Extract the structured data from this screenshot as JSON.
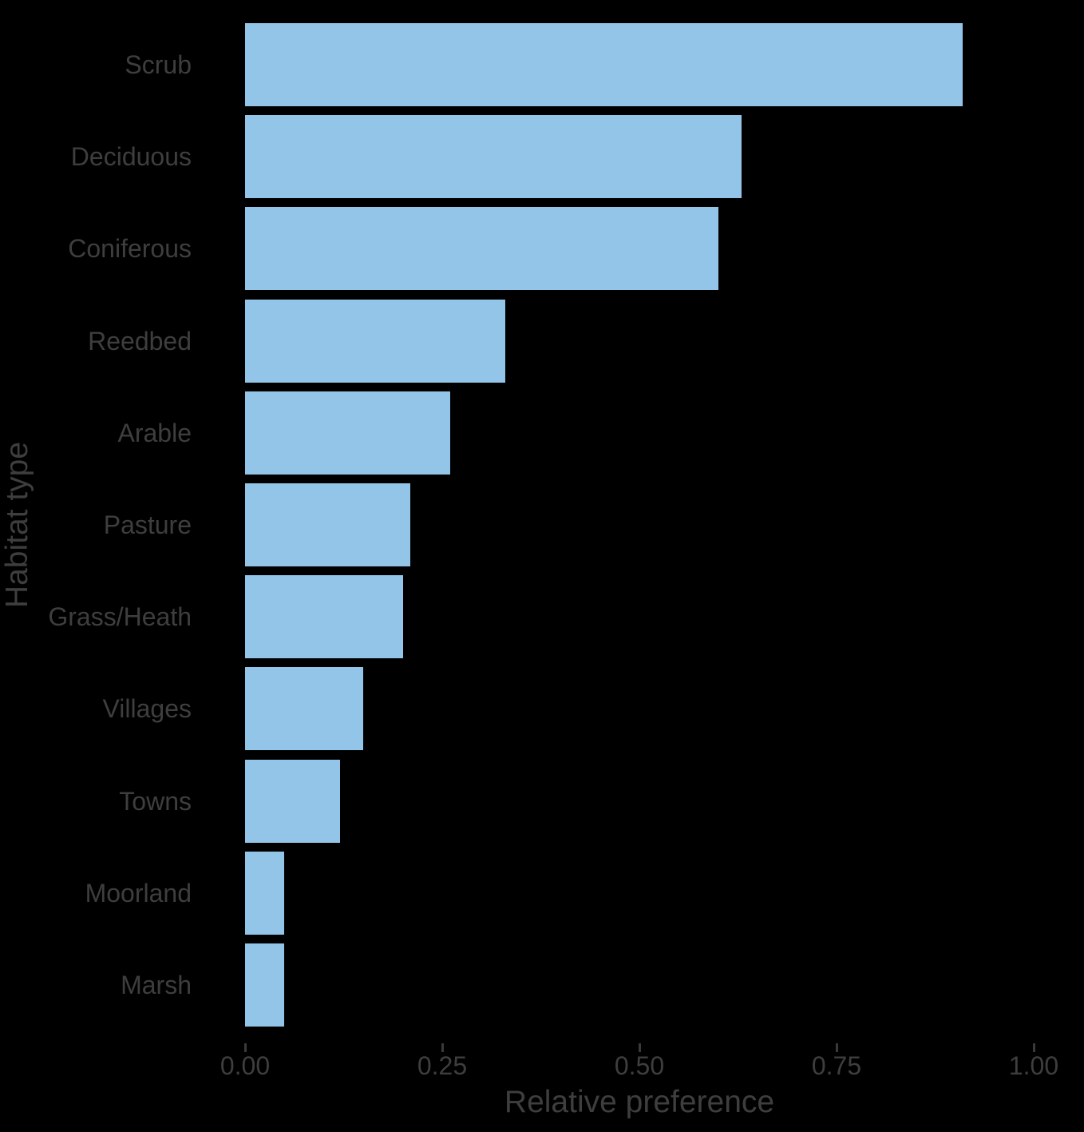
{
  "chart_data": {
    "type": "bar",
    "orientation": "horizontal",
    "title": "",
    "xlabel": "Relative preference",
    "ylabel": "Habitat type",
    "categories": [
      "Scrub",
      "Deciduous",
      "Coniferous",
      "Reedbed",
      "Arable",
      "Pasture",
      "Grass/Heath",
      "Villages",
      "Towns",
      "Moorland",
      "Marsh"
    ],
    "values": [
      0.91,
      0.63,
      0.6,
      0.33,
      0.26,
      0.21,
      0.2,
      0.15,
      0.12,
      0.05,
      0.05
    ],
    "xlim": [
      0,
      1.0
    ],
    "x_ticks": [
      {
        "value": 0.0,
        "label": "0.00"
      },
      {
        "value": 0.25,
        "label": "0.25"
      },
      {
        "value": 0.5,
        "label": "0.50"
      },
      {
        "value": 0.75,
        "label": "0.75"
      },
      {
        "value": 1.0,
        "label": "1.00"
      }
    ],
    "grid": false,
    "legend": false,
    "colors": {
      "bar_fill": "#92C5E8",
      "background": "#000000",
      "text": "#3E3E3E",
      "tick_mark": "#3A3A3A"
    }
  }
}
